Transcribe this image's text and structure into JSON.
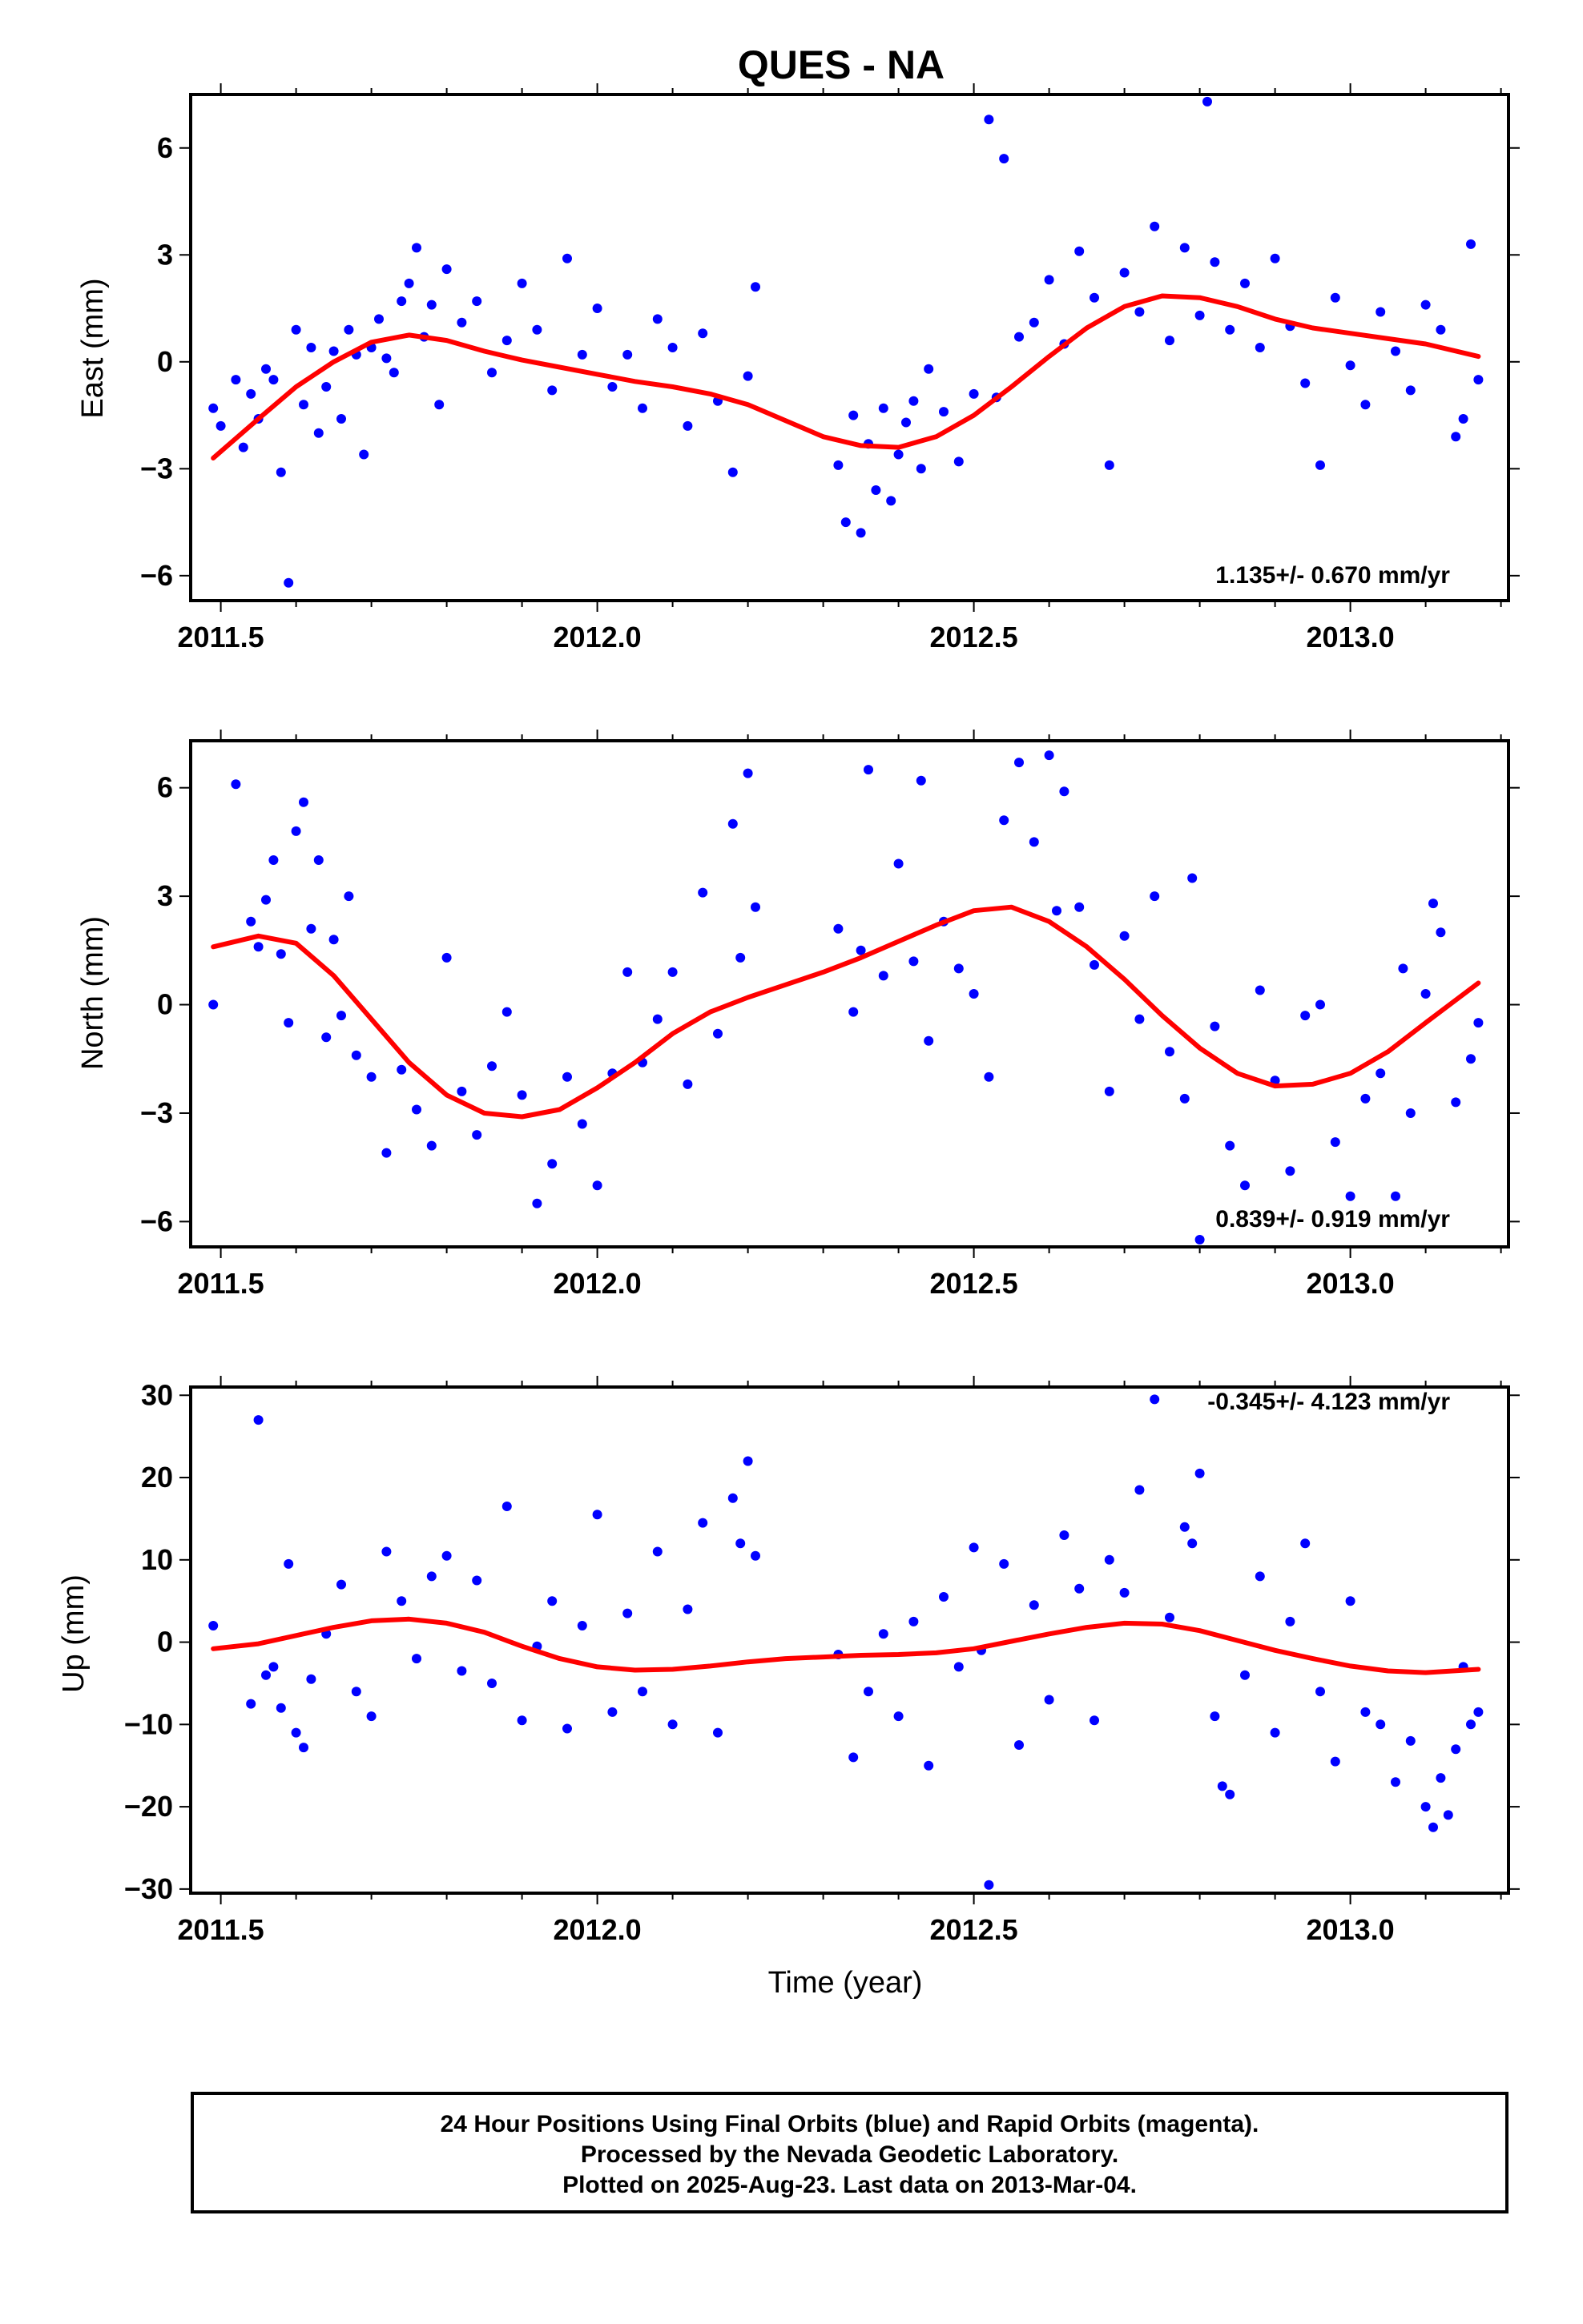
{
  "title": "QUES - NA",
  "xlabel": "Time (year)",
  "footer": {
    "line1": "24 Hour Positions Using Final Orbits (blue) and Rapid Orbits (magenta).",
    "line2": "Processed by the Nevada Geodetic Laboratory.",
    "line3": "Plotted on 2025-Aug-23. Last data on 2013-Mar-04."
  },
  "colors": {
    "points": "#0000ff",
    "fit": "#ff0000",
    "axis": "#000000"
  },
  "chart_data": [
    {
      "type": "scatter",
      "ylabel": "East (mm)",
      "rate_label": "1.135+/- 0.670 mm/yr",
      "xlim": [
        2011.46,
        2013.21
      ],
      "ylim": [
        -6.7,
        7.5
      ],
      "xticks": [
        2011.5,
        2012.0,
        2012.5,
        2013.0
      ],
      "xtick_labels": [
        "2011.5",
        "2012.0",
        "2012.5",
        "2013.0"
      ],
      "yticks": [
        -6,
        -3,
        0,
        3,
        6
      ],
      "ytick_labels": [
        "−6",
        "−3",
        "0",
        "3",
        "6"
      ],
      "fit": {
        "x": [
          2011.49,
          2011.55,
          2011.6,
          2011.65,
          2011.7,
          2011.75,
          2011.8,
          2011.85,
          2011.9,
          2011.95,
          2012.0,
          2012.05,
          2012.1,
          2012.15,
          2012.2,
          2012.25,
          2012.3,
          2012.35,
          2012.4,
          2012.45,
          2012.5,
          2012.55,
          2012.6,
          2012.65,
          2012.7,
          2012.75,
          2012.8,
          2012.85,
          2012.9,
          2012.95,
          2013.0,
          2013.05,
          2013.1,
          2013.17
        ],
        "y": [
          -2.7,
          -1.6,
          -0.7,
          0.0,
          0.55,
          0.75,
          0.6,
          0.3,
          0.05,
          -0.15,
          -0.35,
          -0.55,
          -0.7,
          -0.9,
          -1.2,
          -1.65,
          -2.1,
          -2.35,
          -2.4,
          -2.1,
          -1.5,
          -0.7,
          0.15,
          0.95,
          1.55,
          1.85,
          1.8,
          1.55,
          1.2,
          0.95,
          0.8,
          0.65,
          0.5,
          0.15
        ]
      },
      "points": {
        "x": [
          2011.49,
          2011.5,
          2011.52,
          2011.53,
          2011.54,
          2011.55,
          2011.56,
          2011.57,
          2011.58,
          2011.59,
          2011.6,
          2011.61,
          2011.62,
          2011.63,
          2011.64,
          2011.65,
          2011.66,
          2011.67,
          2011.68,
          2011.69,
          2011.7,
          2011.71,
          2011.72,
          2011.73,
          2011.74,
          2011.75,
          2011.76,
          2011.77,
          2011.78,
          2011.79,
          2011.8,
          2011.82,
          2011.84,
          2011.86,
          2011.88,
          2011.9,
          2011.92,
          2011.94,
          2011.96,
          2011.98,
          2012.0,
          2012.02,
          2012.04,
          2012.06,
          2012.08,
          2012.1,
          2012.12,
          2012.14,
          2012.16,
          2012.18,
          2012.2,
          2012.21,
          2012.32,
          2012.33,
          2012.34,
          2012.35,
          2012.36,
          2012.37,
          2012.38,
          2012.39,
          2012.4,
          2012.41,
          2012.42,
          2012.43,
          2012.44,
          2012.46,
          2012.48,
          2012.5,
          2012.52,
          2012.53,
          2012.54,
          2012.56,
          2012.58,
          2012.6,
          2012.62,
          2012.64,
          2012.66,
          2012.68,
          2012.7,
          2012.72,
          2012.74,
          2012.76,
          2012.78,
          2012.8,
          2012.81,
          2012.82,
          2012.84,
          2012.86,
          2012.88,
          2012.9,
          2012.92,
          2012.94,
          2012.96,
          2012.98,
          2013.0,
          2013.02,
          2013.04,
          2013.06,
          2013.08,
          2013.1,
          2013.12,
          2013.14,
          2013.15,
          2013.16,
          2013.17
        ],
        "y": [
          -1.3,
          -1.8,
          -0.5,
          -2.4,
          -0.9,
          -1.6,
          -0.2,
          -0.5,
          -3.1,
          -6.2,
          0.9,
          -1.2,
          0.4,
          -2.0,
          -0.7,
          0.3,
          -1.6,
          0.9,
          0.2,
          -2.6,
          0.4,
          1.2,
          0.1,
          -0.3,
          1.7,
          2.2,
          3.2,
          0.7,
          1.6,
          -1.2,
          2.6,
          1.1,
          1.7,
          -0.3,
          0.6,
          2.2,
          0.9,
          -0.8,
          2.9,
          0.2,
          1.5,
          -0.7,
          0.2,
          -1.3,
          1.2,
          0.4,
          -1.8,
          0.8,
          -1.1,
          -3.1,
          -0.4,
          2.1,
          -2.9,
          -4.5,
          -1.5,
          -4.8,
          -2.3,
          -3.6,
          -1.3,
          -3.9,
          -2.6,
          -1.7,
          -1.1,
          -3.0,
          -0.2,
          -1.4,
          -2.8,
          -0.9,
          6.8,
          -1.0,
          5.7,
          0.7,
          1.1,
          2.3,
          0.5,
          3.1,
          1.8,
          -2.9,
          2.5,
          1.4,
          3.8,
          0.6,
          3.2,
          1.3,
          7.3,
          2.8,
          0.9,
          2.2,
          0.4,
          2.9,
          1.0,
          -0.6,
          -2.9,
          1.8,
          -0.1,
          -1.2,
          1.4,
          0.3,
          -0.8,
          1.6,
          0.9,
          -2.1,
          -1.6,
          3.3,
          -0.5
        ]
      }
    },
    {
      "type": "scatter",
      "ylabel": "North (mm)",
      "rate_label": "0.839+/- 0.919 mm/yr",
      "xlim": [
        2011.46,
        2013.21
      ],
      "ylim": [
        -6.7,
        7.3
      ],
      "xticks": [
        2011.5,
        2012.0,
        2012.5,
        2013.0
      ],
      "xtick_labels": [
        "2011.5",
        "2012.0",
        "2012.5",
        "2013.0"
      ],
      "yticks": [
        -6,
        -3,
        0,
        3,
        6
      ],
      "ytick_labels": [
        "−6",
        "−3",
        "0",
        "3",
        "6"
      ],
      "fit": {
        "x": [
          2011.49,
          2011.55,
          2011.6,
          2011.65,
          2011.7,
          2011.75,
          2011.8,
          2011.85,
          2011.9,
          2011.95,
          2012.0,
          2012.05,
          2012.1,
          2012.15,
          2012.2,
          2012.25,
          2012.3,
          2012.35,
          2012.4,
          2012.45,
          2012.5,
          2012.55,
          2012.6,
          2012.65,
          2012.7,
          2012.75,
          2012.8,
          2012.85,
          2012.9,
          2012.95,
          2013.0,
          2013.05,
          2013.1,
          2013.17
        ],
        "y": [
          1.6,
          1.9,
          1.7,
          0.8,
          -0.4,
          -1.6,
          -2.5,
          -3.0,
          -3.1,
          -2.9,
          -2.3,
          -1.6,
          -0.8,
          -0.2,
          0.2,
          0.55,
          0.9,
          1.3,
          1.75,
          2.2,
          2.6,
          2.7,
          2.3,
          1.6,
          0.7,
          -0.3,
          -1.2,
          -1.9,
          -2.25,
          -2.2,
          -1.9,
          -1.3,
          -0.5,
          0.6
        ]
      },
      "points": {
        "x": [
          2011.49,
          2011.52,
          2011.54,
          2011.55,
          2011.56,
          2011.57,
          2011.58,
          2011.59,
          2011.6,
          2011.61,
          2011.62,
          2011.63,
          2011.64,
          2011.65,
          2011.66,
          2011.67,
          2011.68,
          2011.7,
          2011.72,
          2011.74,
          2011.76,
          2011.78,
          2011.8,
          2011.82,
          2011.84,
          2011.86,
          2011.88,
          2011.9,
          2011.92,
          2011.94,
          2011.96,
          2011.98,
          2012.0,
          2012.02,
          2012.04,
          2012.06,
          2012.08,
          2012.1,
          2012.12,
          2012.14,
          2012.16,
          2012.18,
          2012.19,
          2012.2,
          2012.21,
          2012.32,
          2012.34,
          2012.35,
          2012.36,
          2012.38,
          2012.4,
          2012.42,
          2012.43,
          2012.44,
          2012.46,
          2012.48,
          2012.5,
          2012.52,
          2012.54,
          2012.56,
          2012.58,
          2012.6,
          2012.61,
          2012.62,
          2012.64,
          2012.66,
          2012.68,
          2012.7,
          2012.72,
          2012.74,
          2012.76,
          2012.78,
          2012.79,
          2012.8,
          2012.82,
          2012.84,
          2012.86,
          2012.88,
          2012.9,
          2012.92,
          2012.94,
          2012.96,
          2012.98,
          2013.0,
          2013.02,
          2013.04,
          2013.06,
          2013.07,
          2013.08,
          2013.1,
          2013.11,
          2013.12,
          2013.14,
          2013.16,
          2013.17
        ],
        "y": [
          0.0,
          6.1,
          2.3,
          1.6,
          2.9,
          4.0,
          1.4,
          -0.5,
          4.8,
          5.6,
          2.1,
          4.0,
          -0.9,
          1.8,
          -0.3,
          3.0,
          -1.4,
          -2.0,
          -4.1,
          -1.8,
          -2.9,
          -3.9,
          1.3,
          -2.4,
          -3.6,
          -1.7,
          -0.2,
          -2.5,
          -5.5,
          -4.4,
          -2.0,
          -3.3,
          -5.0,
          -1.9,
          0.9,
          -1.6,
          -0.4,
          0.9,
          -2.2,
          3.1,
          -0.8,
          5.0,
          1.3,
          6.4,
          2.7,
          2.1,
          -0.2,
          1.5,
          6.5,
          0.8,
          3.9,
          1.2,
          6.2,
          -1.0,
          2.3,
          1.0,
          0.3,
          -2.0,
          5.1,
          6.7,
          4.5,
          6.9,
          2.6,
          5.9,
          2.7,
          1.1,
          -2.4,
          1.9,
          -0.4,
          3.0,
          -1.3,
          -2.6,
          3.5,
          -6.5,
          -0.6,
          -3.9,
          -5.0,
          0.4,
          -2.1,
          -4.6,
          -0.3,
          0.0,
          -3.8,
          -5.3,
          -2.6,
          -1.9,
          -5.3,
          1.0,
          -3.0,
          0.3,
          2.8,
          2.0,
          -2.7,
          -1.5,
          -0.5
        ]
      }
    },
    {
      "type": "scatter",
      "ylabel": "Up (mm)",
      "rate_label": "-0.345+/- 4.123 mm/yr",
      "xlim": [
        2011.46,
        2013.21
      ],
      "ylim": [
        -30.5,
        31
      ],
      "xticks": [
        2011.5,
        2012.0,
        2012.5,
        2013.0
      ],
      "xtick_labels": [
        "2011.5",
        "2012.0",
        "2012.5",
        "2013.0"
      ],
      "yticks": [
        -30,
        -20,
        -10,
        0,
        10,
        20,
        30
      ],
      "ytick_labels": [
        "−30",
        "−20",
        "−10",
        "0",
        "10",
        "20",
        "30"
      ],
      "fit": {
        "x": [
          2011.49,
          2011.55,
          2011.6,
          2011.65,
          2011.7,
          2011.75,
          2011.8,
          2011.85,
          2011.9,
          2011.95,
          2012.0,
          2012.05,
          2012.1,
          2012.15,
          2012.2,
          2012.25,
          2012.3,
          2012.35,
          2012.4,
          2012.45,
          2012.5,
          2012.55,
          2012.6,
          2012.65,
          2012.7,
          2012.75,
          2012.8,
          2012.85,
          2012.9,
          2012.95,
          2013.0,
          2013.05,
          2013.1,
          2013.17
        ],
        "y": [
          -0.8,
          -0.2,
          0.8,
          1.8,
          2.6,
          2.8,
          2.3,
          1.2,
          -0.5,
          -2.0,
          -3.0,
          -3.4,
          -3.3,
          -2.9,
          -2.4,
          -2.0,
          -1.8,
          -1.6,
          -1.5,
          -1.3,
          -0.8,
          0.1,
          1.0,
          1.8,
          2.3,
          2.2,
          1.4,
          0.2,
          -1.0,
          -2.0,
          -2.9,
          -3.5,
          -3.7,
          -3.3
        ]
      },
      "points": {
        "x": [
          2011.49,
          2011.54,
          2011.55,
          2011.56,
          2011.57,
          2011.58,
          2011.59,
          2011.6,
          2011.61,
          2011.62,
          2011.64,
          2011.66,
          2011.68,
          2011.7,
          2011.72,
          2011.74,
          2011.76,
          2011.78,
          2011.8,
          2011.82,
          2011.84,
          2011.86,
          2011.88,
          2011.9,
          2011.92,
          2011.94,
          2011.96,
          2011.98,
          2012.0,
          2012.02,
          2012.04,
          2012.06,
          2012.08,
          2012.1,
          2012.12,
          2012.14,
          2012.16,
          2012.18,
          2012.19,
          2012.2,
          2012.21,
          2012.32,
          2012.34,
          2012.36,
          2012.38,
          2012.4,
          2012.42,
          2012.44,
          2012.46,
          2012.48,
          2012.5,
          2012.51,
          2012.52,
          2012.54,
          2012.56,
          2012.58,
          2012.6,
          2012.62,
          2012.64,
          2012.66,
          2012.68,
          2012.7,
          2012.72,
          2012.74,
          2012.76,
          2012.78,
          2012.79,
          2012.8,
          2012.82,
          2012.83,
          2012.84,
          2012.86,
          2012.88,
          2012.9,
          2012.92,
          2012.94,
          2012.96,
          2012.98,
          2013.0,
          2013.02,
          2013.04,
          2013.06,
          2013.08,
          2013.1,
          2013.11,
          2013.12,
          2013.13,
          2013.14,
          2013.15,
          2013.16,
          2013.17
        ],
        "y": [
          2.0,
          -7.5,
          27.0,
          -4.0,
          -3.0,
          -8.0,
          9.5,
          -11.0,
          -12.8,
          -4.5,
          1.0,
          7.0,
          -6.0,
          -9.0,
          11.0,
          5.0,
          -2.0,
          8.0,
          10.5,
          -3.5,
          7.5,
          -5.0,
          16.5,
          -9.5,
          -0.5,
          5.0,
          -10.5,
          2.0,
          15.5,
          -8.5,
          3.5,
          -6.0,
          11.0,
          -10.0,
          4.0,
          14.5,
          -11.0,
          17.5,
          12.0,
          22.0,
          10.5,
          -1.5,
          -14.0,
          -6.0,
          1.0,
          -9.0,
          2.5,
          -15.0,
          5.5,
          -3.0,
          11.5,
          -1.0,
          -29.5,
          9.5,
          -12.5,
          4.5,
          -7.0,
          13.0,
          6.5,
          -9.5,
          10.0,
          6.0,
          18.5,
          29.5,
          3.0,
          14.0,
          12.0,
          20.5,
          -9.0,
          -17.5,
          -18.5,
          -4.0,
          8.0,
          -11.0,
          2.5,
          12.0,
          -6.0,
          -14.5,
          5.0,
          -8.5,
          -10.0,
          -17.0,
          -12.0,
          -20.0,
          -22.5,
          -16.5,
          -21.0,
          -13.0,
          -3.0,
          -10.0,
          -8.5
        ]
      }
    }
  ]
}
